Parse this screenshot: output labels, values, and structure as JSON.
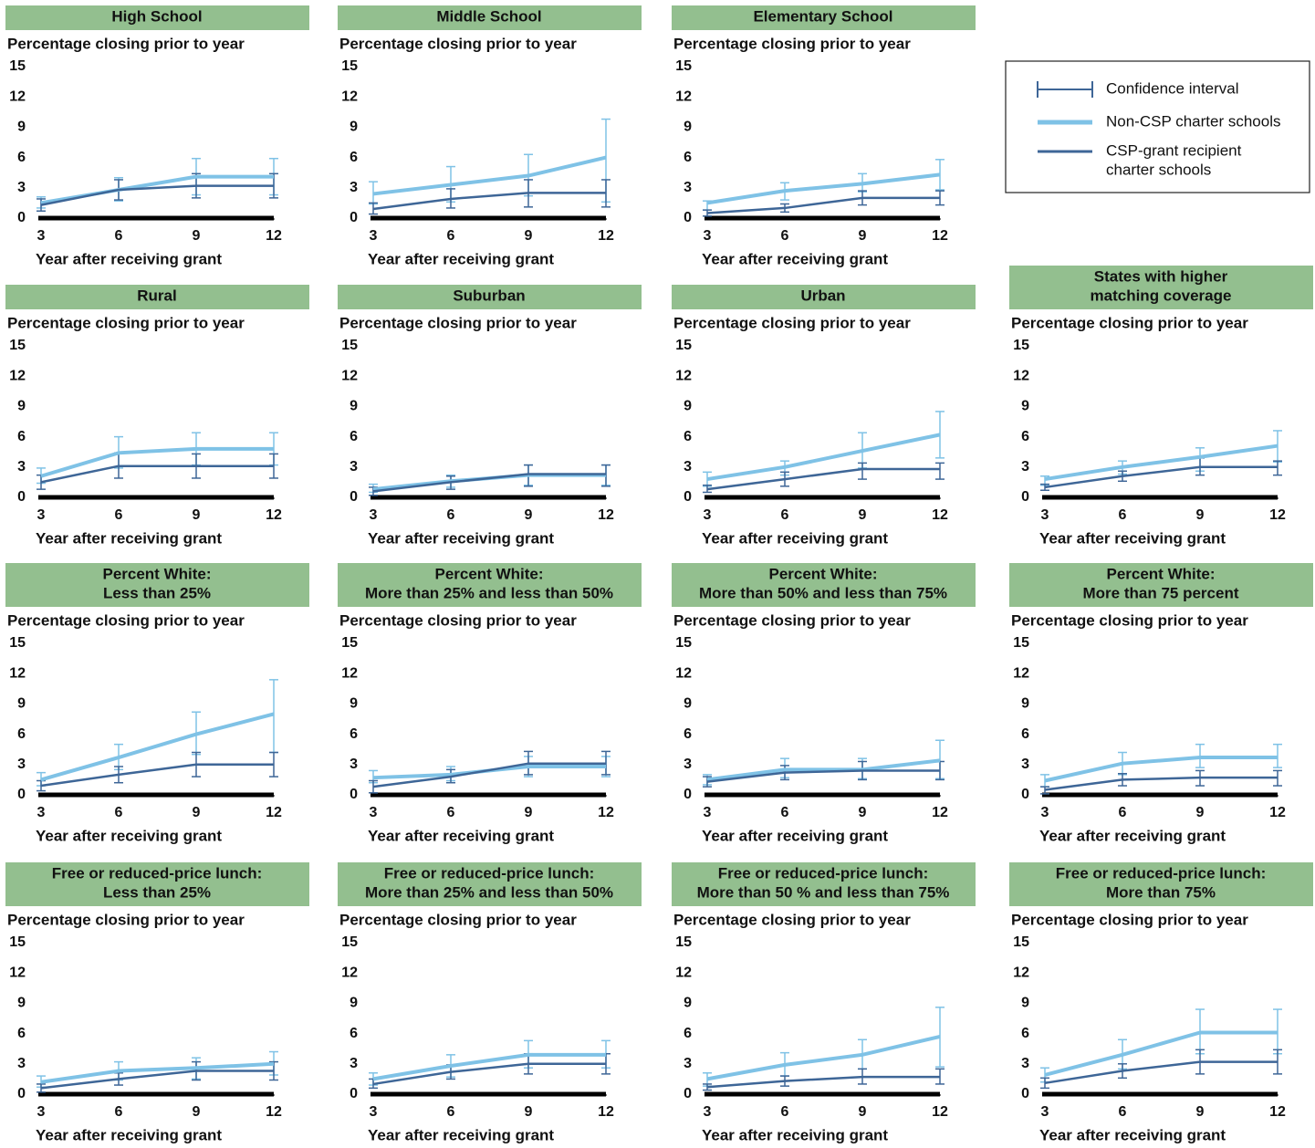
{
  "legend": [
    {
      "label": [
        "Confidence interval"
      ],
      "color": "#3e6697",
      "kind": "ci"
    },
    {
      "label": [
        "Non-CSP charter schools"
      ],
      "color": "#7fc2e6",
      "kind": "line"
    },
    {
      "label": [
        "CSP-grant recipient",
        "charter schools"
      ],
      "color": "#3e6697",
      "kind": "line"
    }
  ],
  "chart_data": [
    {
      "type": "line",
      "title": [
        "High School"
      ],
      "ylabel": "Percentage closing prior to year",
      "xlabel": "Year after receiving grant",
      "x": [
        3,
        6,
        9,
        12
      ],
      "xlim": [
        3,
        12
      ],
      "xticks": [
        3,
        6,
        9,
        12
      ],
      "ylim": [
        0,
        15
      ],
      "yticks": [
        0,
        3,
        6,
        9,
        12,
        15
      ],
      "series": [
        {
          "color": "#7fc2e6",
          "values": [
            1.5,
            2.8,
            4.1,
            4.1
          ],
          "lower": [
            1.0,
            1.7,
            2.3,
            2.3
          ],
          "upper": [
            2.1,
            4.0,
            5.9,
            5.9
          ]
        },
        {
          "color": "#3e6697",
          "values": [
            1.3,
            2.8,
            3.2,
            3.2
          ],
          "lower": [
            0.7,
            1.8,
            2.0,
            2.0
          ],
          "upper": [
            1.9,
            3.8,
            4.4,
            4.4
          ]
        }
      ]
    },
    {
      "type": "line",
      "title": [
        "Middle School"
      ],
      "ylabel": "Percentage closing prior to year",
      "xlabel": "Year after receiving grant",
      "x": [
        3,
        6,
        9,
        12
      ],
      "xlim": [
        3,
        12
      ],
      "xticks": [
        3,
        6,
        9,
        12
      ],
      "ylim": [
        0,
        15
      ],
      "yticks": [
        0,
        3,
        6,
        9,
        12,
        15
      ],
      "series": [
        {
          "color": "#7fc2e6",
          "values": [
            2.4,
            3.3,
            4.2,
            6.0
          ],
          "lower": [
            1.4,
            1.6,
            2.2,
            1.6
          ],
          "upper": [
            3.6,
            5.1,
            6.3,
            9.8
          ]
        },
        {
          "color": "#3e6697",
          "values": [
            0.9,
            1.9,
            2.5,
            2.5
          ],
          "lower": [
            0.4,
            1.0,
            1.1,
            1.1
          ],
          "upper": [
            1.5,
            2.9,
            3.8,
            3.8
          ]
        }
      ]
    },
    {
      "type": "line",
      "title": [
        "Elementary School"
      ],
      "ylabel": "Percentage closing prior to year",
      "xlabel": "Year after receiving grant",
      "x": [
        3,
        6,
        9,
        12
      ],
      "xlim": [
        3,
        12
      ],
      "xticks": [
        3,
        6,
        9,
        12
      ],
      "ylim": [
        0,
        15
      ],
      "yticks": [
        0,
        3,
        6,
        9,
        12,
        15
      ],
      "series": [
        {
          "color": "#7fc2e6",
          "values": [
            1.5,
            2.7,
            3.4,
            4.3
          ],
          "lower": [
            0.8,
            1.8,
            2.6,
            2.8
          ],
          "upper": [
            1.7,
            3.5,
            4.4,
            5.8
          ]
        },
        {
          "color": "#3e6697",
          "values": [
            0.5,
            1.0,
            2.0,
            2.0
          ],
          "lower": [
            0.2,
            0.6,
            1.3,
            1.3
          ],
          "upper": [
            0.8,
            1.4,
            2.7,
            2.7
          ]
        }
      ]
    },
    {
      "type": "line",
      "title": [
        "Rural"
      ],
      "ylabel": "Percentage closing prior to year",
      "xlabel": "Year after receiving grant",
      "x": [
        3,
        6,
        9,
        12
      ],
      "xlim": [
        3,
        12
      ],
      "xticks": [
        3,
        6,
        9,
        12
      ],
      "ylim": [
        0,
        15
      ],
      "yticks": [
        0,
        3,
        6,
        9,
        12,
        15
      ],
      "series": [
        {
          "color": "#7fc2e6",
          "values": [
            2.1,
            4.4,
            4.8,
            4.8
          ],
          "lower": [
            1.4,
            2.9,
            3.2,
            3.2
          ],
          "upper": [
            2.9,
            6.0,
            6.4,
            6.4
          ]
        },
        {
          "color": "#3e6697",
          "values": [
            1.5,
            3.1,
            3.1,
            3.1
          ],
          "lower": [
            0.8,
            1.9,
            1.9,
            1.9
          ],
          "upper": [
            2.2,
            4.4,
            4.3,
            4.3
          ]
        }
      ]
    },
    {
      "type": "line",
      "title": [
        "Suburban"
      ],
      "ylabel": "Percentage closing prior to year",
      "xlabel": "Year after receiving grant",
      "x": [
        3,
        6,
        9,
        12
      ],
      "xlim": [
        3,
        12
      ],
      "xticks": [
        3,
        6,
        9,
        12
      ],
      "ylim": [
        0,
        15
      ],
      "yticks": [
        0,
        3,
        6,
        9,
        12,
        15
      ],
      "series": [
        {
          "color": "#7fc2e6",
          "values": [
            0.8,
            1.6,
            2.2,
            2.2
          ],
          "lower": [
            0.5,
            1.0,
            1.2,
            1.2
          ],
          "upper": [
            1.3,
            2.2,
            3.2,
            3.2
          ]
        },
        {
          "color": "#3e6697",
          "values": [
            0.6,
            1.5,
            2.3,
            2.3
          ],
          "lower": [
            0.2,
            0.8,
            1.1,
            1.1
          ],
          "upper": [
            1.0,
            2.1,
            3.2,
            3.2
          ]
        }
      ]
    },
    {
      "type": "line",
      "title": [
        "Urban"
      ],
      "ylabel": "Percentage closing prior to year",
      "xlabel": "Year after receiving grant",
      "x": [
        3,
        6,
        9,
        12
      ],
      "xlim": [
        3,
        12
      ],
      "xticks": [
        3,
        6,
        9,
        12
      ],
      "ylim": [
        0,
        15
      ],
      "yticks": [
        0,
        3,
        6,
        9,
        12,
        15
      ],
      "series": [
        {
          "color": "#7fc2e6",
          "values": [
            1.8,
            3.0,
            4.6,
            6.2
          ],
          "lower": [
            1.1,
            2.2,
            2.9,
            3.9
          ],
          "upper": [
            2.5,
            3.6,
            6.4,
            8.5
          ]
        },
        {
          "color": "#3e6697",
          "values": [
            0.8,
            1.8,
            2.8,
            2.8
          ],
          "lower": [
            0.5,
            1.1,
            1.8,
            1.8
          ],
          "upper": [
            1.2,
            2.5,
            3.4,
            3.4
          ]
        }
      ]
    },
    {
      "type": "line",
      "title": [
        "States with higher",
        "matching coverage"
      ],
      "ylabel": "Percentage closing prior to year",
      "xlabel": "Year after receiving grant",
      "x": [
        3,
        6,
        9,
        12
      ],
      "xlim": [
        3,
        12
      ],
      "xticks": [
        3,
        6,
        9,
        12
      ],
      "ylim": [
        0,
        15
      ],
      "yticks": [
        0,
        3,
        6,
        9,
        12,
        15
      ],
      "series": [
        {
          "color": "#7fc2e6",
          "values": [
            1.8,
            3.0,
            4.0,
            5.1
          ],
          "lower": [
            1.2,
            2.3,
            2.6,
            3.5
          ],
          "upper": [
            2.1,
            3.6,
            4.9,
            6.6
          ]
        },
        {
          "color": "#3e6697",
          "values": [
            1.0,
            2.1,
            3.0,
            3.0
          ],
          "lower": [
            0.7,
            1.6,
            2.2,
            2.2
          ],
          "upper": [
            1.3,
            2.6,
            3.9,
            3.6
          ]
        }
      ]
    },
    {
      "type": "line",
      "title": [
        "Percent White:",
        "Less than 25%"
      ],
      "ylabel": "Percentage closing prior to year",
      "xlabel": "Year after receiving grant",
      "x": [
        3,
        6,
        9,
        12
      ],
      "xlim": [
        3,
        12
      ],
      "xticks": [
        3,
        6,
        9,
        12
      ],
      "ylim": [
        0,
        15
      ],
      "yticks": [
        0,
        3,
        6,
        9,
        12,
        15
      ],
      "series": [
        {
          "color": "#7fc2e6",
          "values": [
            1.5,
            3.7,
            6.0,
            8.0
          ],
          "lower": [
            0.9,
            2.5,
            4.0,
            4.2
          ],
          "upper": [
            2.2,
            5.0,
            8.2,
            11.4
          ]
        },
        {
          "color": "#3e6697",
          "values": [
            0.9,
            2.0,
            3.0,
            3.0
          ],
          "lower": [
            0.4,
            1.2,
            1.8,
            1.8
          ],
          "upper": [
            1.4,
            2.8,
            4.2,
            4.2
          ]
        }
      ]
    },
    {
      "type": "line",
      "title": [
        "Percent White:",
        "More than 25% and less than 50%"
      ],
      "ylabel": "Percentage closing prior to year",
      "xlabel": "Year after receiving grant",
      "x": [
        3,
        6,
        9,
        12
      ],
      "xlim": [
        3,
        12
      ],
      "xticks": [
        3,
        6,
        9,
        12
      ],
      "ylim": [
        0,
        15
      ],
      "yticks": [
        0,
        3,
        6,
        9,
        12,
        15
      ],
      "series": [
        {
          "color": "#7fc2e6",
          "values": [
            1.7,
            2.0,
            2.8,
            2.8
          ],
          "lower": [
            1.2,
            1.4,
            1.8,
            1.8
          ],
          "upper": [
            2.4,
            2.8,
            3.8,
            3.8
          ]
        },
        {
          "color": "#3e6697",
          "values": [
            0.8,
            1.8,
            3.1,
            3.1
          ],
          "lower": [
            0.2,
            1.2,
            2.0,
            2.0
          ],
          "upper": [
            1.4,
            2.5,
            4.3,
            4.3
          ]
        }
      ]
    },
    {
      "type": "line",
      "title": [
        "Percent White:",
        "More than 50% and less than 75%"
      ],
      "ylabel": "Percentage closing prior to year",
      "xlabel": "Year after receiving grant",
      "x": [
        3,
        6,
        9,
        12
      ],
      "xlim": [
        3,
        12
      ],
      "xticks": [
        3,
        6,
        9,
        12
      ],
      "ylim": [
        0,
        15
      ],
      "yticks": [
        0,
        3,
        6,
        9,
        12,
        15
      ],
      "series": [
        {
          "color": "#7fc2e6",
          "values": [
            1.5,
            2.5,
            2.5,
            3.4
          ],
          "lower": [
            1.0,
            1.7,
            1.6,
            1.6
          ],
          "upper": [
            2.0,
            3.6,
            3.6,
            5.4
          ]
        },
        {
          "color": "#3e6697",
          "values": [
            1.3,
            2.2,
            2.4,
            2.4
          ],
          "lower": [
            0.8,
            1.5,
            1.5,
            1.5
          ],
          "upper": [
            1.8,
            2.9,
            3.3,
            3.3
          ]
        }
      ]
    },
    {
      "type": "line",
      "title": [
        "Percent White:",
        "More than 75 percent"
      ],
      "ylabel": "Percentage closing prior to year",
      "xlabel": "Year after receiving grant",
      "x": [
        3,
        6,
        9,
        12
      ],
      "xlim": [
        3,
        12
      ],
      "xticks": [
        3,
        6,
        9,
        12
      ],
      "ylim": [
        0,
        15
      ],
      "yticks": [
        0,
        3,
        6,
        9,
        12,
        15
      ],
      "series": [
        {
          "color": "#7fc2e6",
          "values": [
            1.4,
            3.1,
            3.7,
            3.7
          ],
          "lower": [
            0.8,
            2.0,
            2.7,
            2.7
          ],
          "upper": [
            2.0,
            4.2,
            5.0,
            5.0
          ]
        },
        {
          "color": "#3e6697",
          "values": [
            0.5,
            1.5,
            1.7,
            1.7
          ],
          "lower": [
            0.1,
            0.9,
            0.9,
            0.9
          ],
          "upper": [
            0.8,
            2.1,
            2.4,
            2.4
          ]
        }
      ]
    },
    {
      "type": "line",
      "title": [
        "Free or reduced-price lunch:",
        "Less than 25%"
      ],
      "ylabel": "Percentage closing prior to year",
      "xlabel": "Year after receiving grant",
      "x": [
        3,
        6,
        9,
        12
      ],
      "xlim": [
        3,
        12
      ],
      "xticks": [
        3,
        6,
        9,
        12
      ],
      "ylim": [
        0,
        15
      ],
      "yticks": [
        0,
        3,
        6,
        9,
        12,
        15
      ],
      "series": [
        {
          "color": "#7fc2e6",
          "values": [
            1.2,
            2.3,
            2.6,
            3.0
          ],
          "lower": [
            0.7,
            1.4,
            1.5,
            1.9
          ],
          "upper": [
            1.8,
            3.2,
            3.6,
            4.2
          ]
        },
        {
          "color": "#3e6697",
          "values": [
            0.6,
            1.5,
            2.3,
            2.3
          ],
          "lower": [
            0.2,
            0.9,
            1.4,
            1.4
          ],
          "upper": [
            1.0,
            2.1,
            3.2,
            3.2
          ]
        }
      ]
    },
    {
      "type": "line",
      "title": [
        "Free or reduced-price lunch:",
        "More than 25% and less than 50%"
      ],
      "ylabel": "Percentage closing prior to year",
      "xlabel": "Year after receiving grant",
      "x": [
        3,
        6,
        9,
        12
      ],
      "xlim": [
        3,
        12
      ],
      "xticks": [
        3,
        6,
        9,
        12
      ],
      "ylim": [
        0,
        15
      ],
      "yticks": [
        0,
        3,
        6,
        9,
        12,
        15
      ],
      "series": [
        {
          "color": "#7fc2e6",
          "values": [
            1.5,
            2.8,
            3.9,
            3.9
          ],
          "lower": [
            0.9,
            1.7,
            2.6,
            2.6
          ],
          "upper": [
            2.1,
            3.9,
            5.3,
            5.3
          ]
        },
        {
          "color": "#3e6697",
          "values": [
            1.0,
            2.2,
            3.0,
            3.0
          ],
          "lower": [
            0.6,
            1.5,
            2.0,
            2.0
          ],
          "upper": [
            1.5,
            2.9,
            4.0,
            4.0
          ]
        }
      ]
    },
    {
      "type": "line",
      "title": [
        "Free or reduced-price lunch:",
        "More than 50 % and less than 75%"
      ],
      "ylabel": "Percentage closing prior to year",
      "xlabel": "Year after receiving grant",
      "x": [
        3,
        6,
        9,
        12
      ],
      "xlim": [
        3,
        12
      ],
      "xticks": [
        3,
        6,
        9,
        12
      ],
      "ylim": [
        0,
        15
      ],
      "yticks": [
        0,
        3,
        6,
        9,
        12,
        15
      ],
      "series": [
        {
          "color": "#7fc2e6",
          "values": [
            1.5,
            2.9,
            3.9,
            5.7
          ],
          "lower": [
            0.8,
            1.8,
            2.5,
            2.7
          ],
          "upper": [
            2.1,
            4.1,
            5.4,
            8.6
          ]
        },
        {
          "color": "#3e6697",
          "values": [
            0.7,
            1.3,
            1.7,
            1.7
          ],
          "lower": [
            0.4,
            0.8,
            1.0,
            1.0
          ],
          "upper": [
            1.0,
            1.8,
            2.5,
            2.5
          ]
        }
      ]
    },
    {
      "type": "line",
      "title": [
        "Free or reduced-price lunch:",
        "More than 75%"
      ],
      "ylabel": "Percentage closing prior to year",
      "xlabel": "Year after receiving grant",
      "x": [
        3,
        6,
        9,
        12
      ],
      "xlim": [
        3,
        12
      ],
      "xticks": [
        3,
        6,
        9,
        12
      ],
      "ylim": [
        0,
        15
      ],
      "yticks": [
        0,
        3,
        6,
        9,
        12,
        15
      ],
      "series": [
        {
          "color": "#7fc2e6",
          "values": [
            1.9,
            3.9,
            6.1,
            6.1
          ],
          "lower": [
            1.2,
            2.5,
            4.0,
            4.0
          ],
          "upper": [
            2.6,
            5.4,
            8.4,
            8.4
          ]
        },
        {
          "color": "#3e6697",
          "values": [
            1.1,
            2.3,
            3.2,
            3.2
          ],
          "lower": [
            0.6,
            1.6,
            2.0,
            2.0
          ],
          "upper": [
            1.6,
            3.0,
            4.4,
            4.4
          ]
        }
      ]
    }
  ]
}
